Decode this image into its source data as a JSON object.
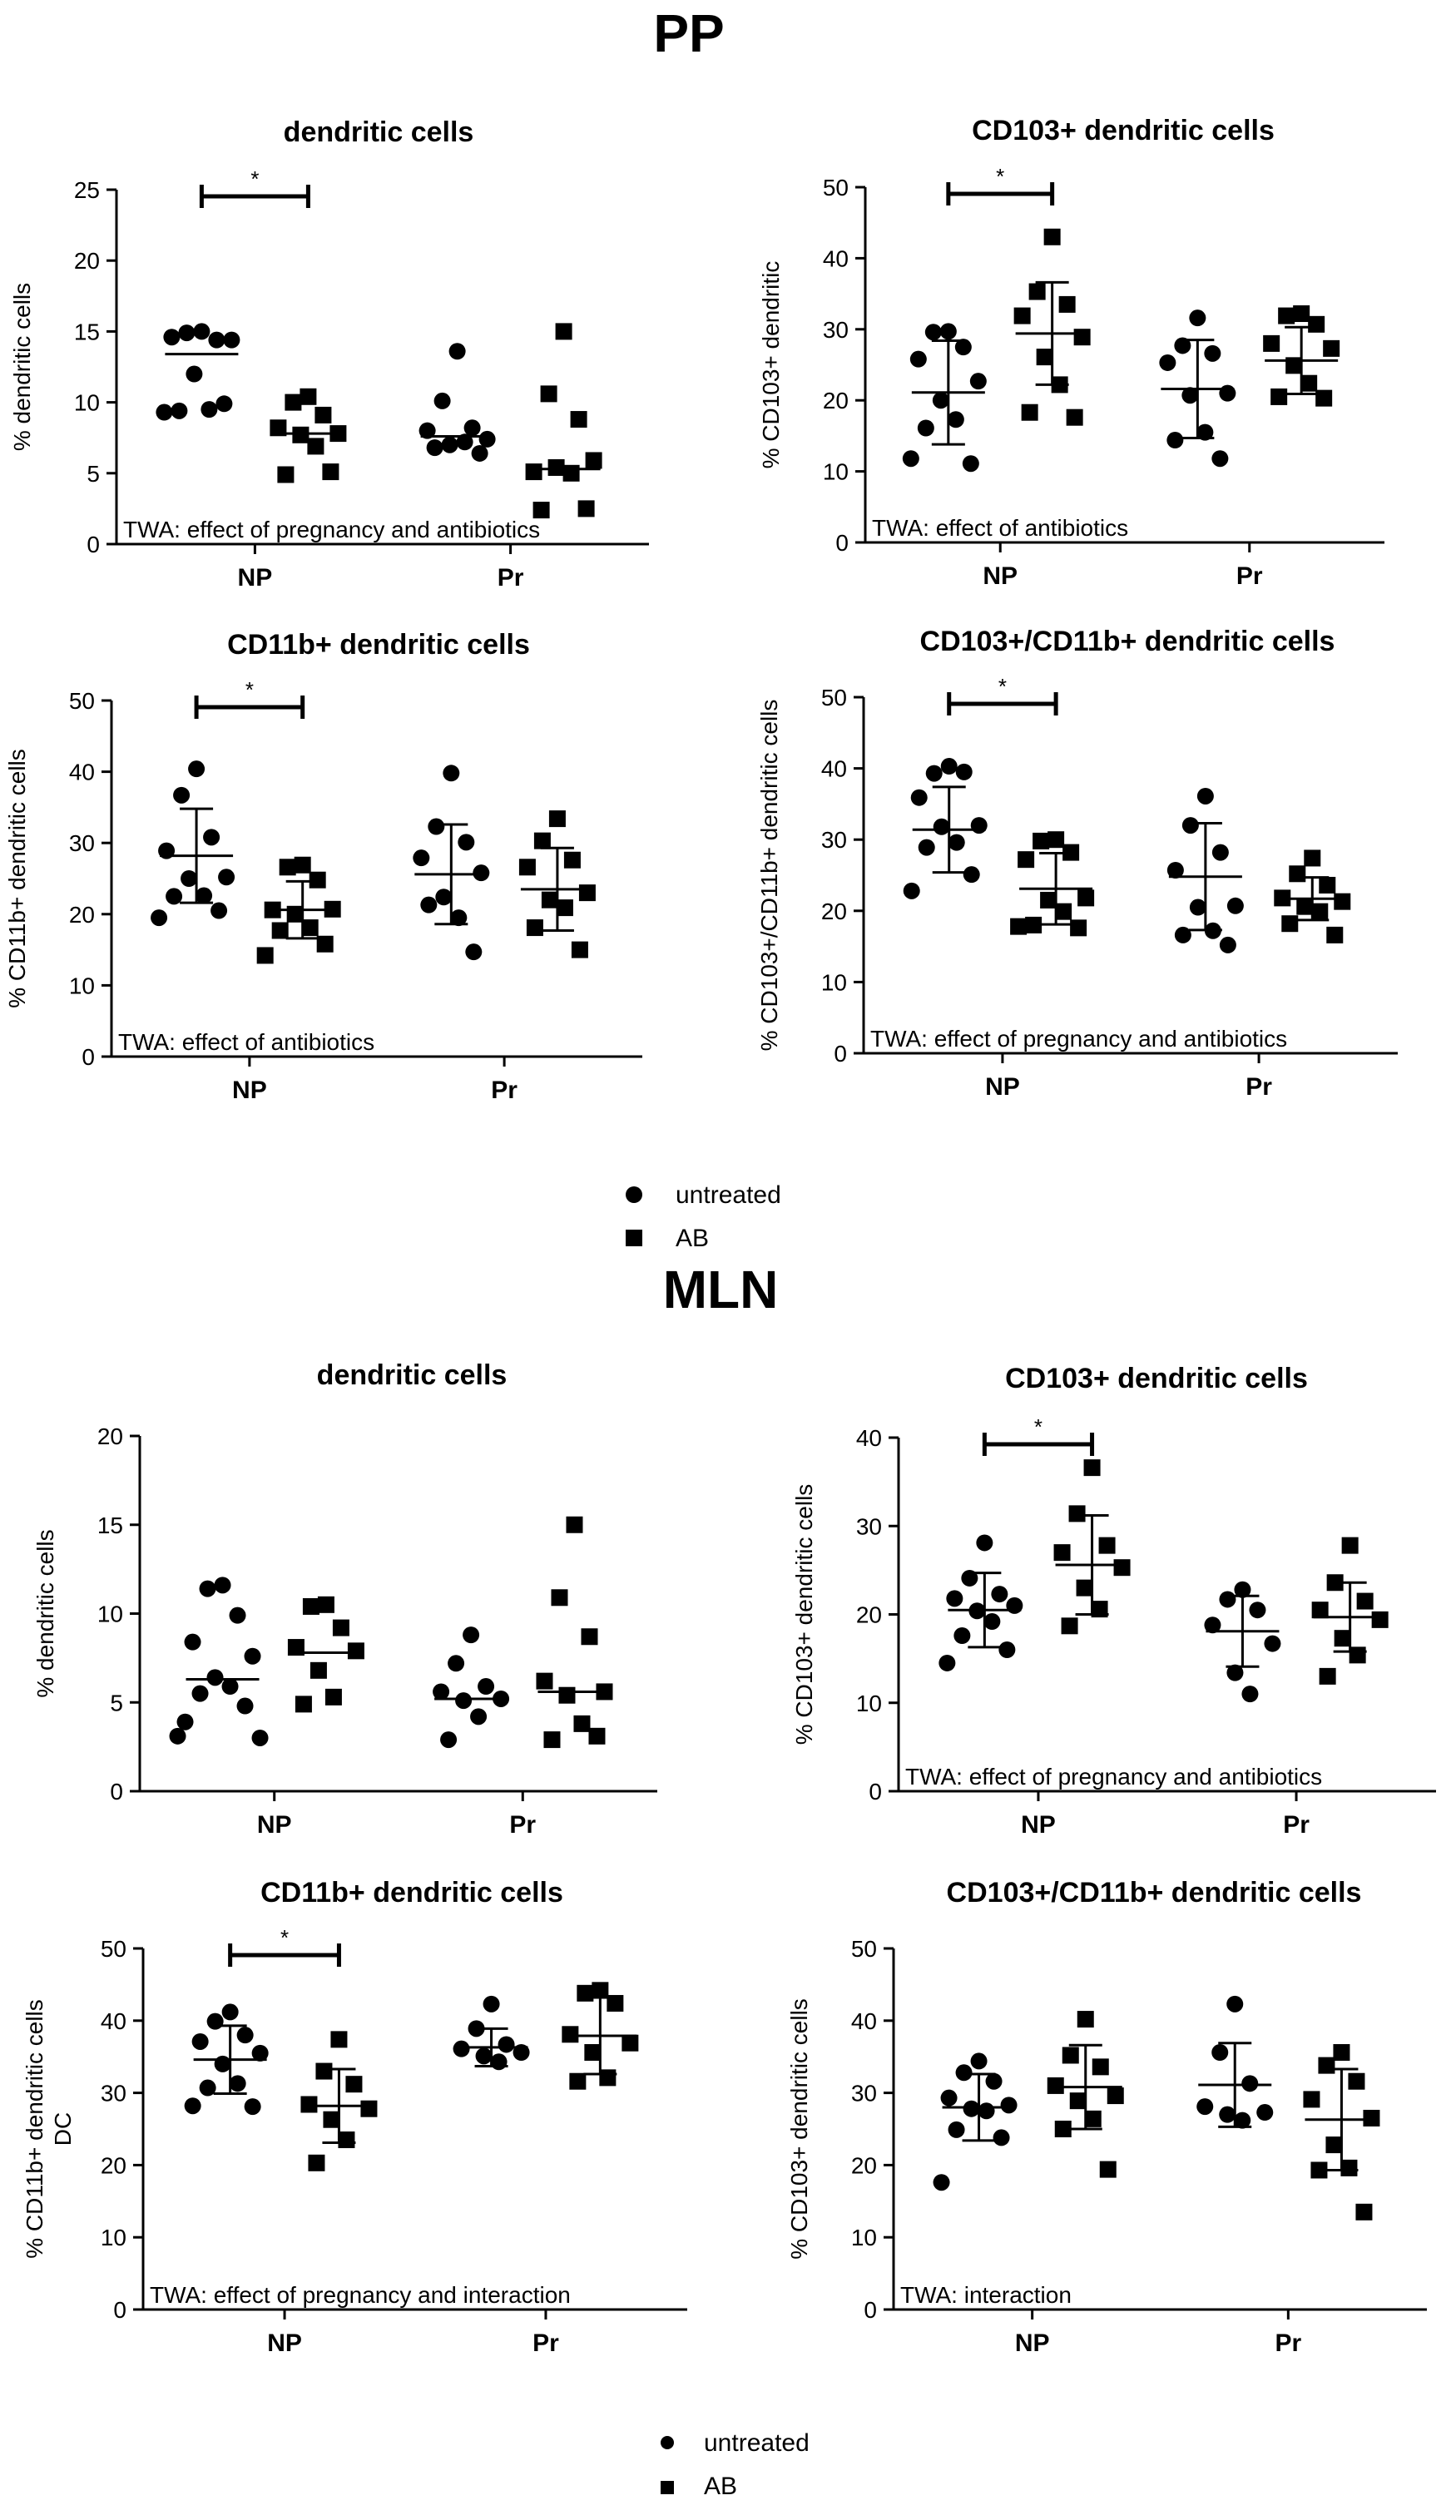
{
  "sections": {
    "pp": {
      "title": "PP"
    },
    "mln": {
      "title": "MLN"
    }
  },
  "legend_top": {
    "untreated": "untreated",
    "ab": "AB"
  },
  "legend_bottom": {
    "untreated": "untreated",
    "ab": "AB"
  },
  "colors": {
    "marker": "#000000",
    "axis": "#000000",
    "background": "#ffffff"
  },
  "chart_data": [
    {
      "id": "pp-dc",
      "type": "scatter",
      "section": "PP",
      "title": "dendritic cells",
      "ylabel": [
        "% dendritic cells"
      ],
      "xlabel": "",
      "categories": [
        "NP",
        "Pr"
      ],
      "ylim": [
        0,
        25
      ],
      "yticks": [
        0,
        5,
        10,
        15,
        20,
        25
      ],
      "annotation": "TWA: effect of pregnancy and antibiotics",
      "significance": {
        "group": "NP",
        "label": "*"
      },
      "series": [
        {
          "name": "untreated",
          "marker": "circle",
          "values": {
            "NP": [
              15.0,
              14.9,
              14.4,
              14.6,
              14.4,
              12.0,
              9.5,
              9.4,
              9.9,
              9.3
            ],
            "Pr": [
              13.6,
              10.1,
              8.2,
              8.0,
              7.4,
              7.0,
              7.2,
              6.8,
              6.4
            ]
          }
        },
        {
          "name": "AB",
          "marker": "square",
          "values": {
            "NP": [
              10.4,
              10.0,
              9.1,
              8.2,
              7.8,
              7.7,
              6.9,
              4.9,
              5.1
            ],
            "Pr": [
              15.0,
              10.6,
              8.8,
              5.1,
              5.9,
              5.4,
              5.0,
              2.4,
              2.5
            ]
          }
        }
      ],
      "mean_sd": {
        "untreated": {
          "NP": [
            13.4,
            0
          ],
          "Pr": [
            7.6,
            0
          ]
        },
        "AB": {
          "NP": [
            7.8,
            0
          ],
          "Pr": [
            5.3,
            0
          ]
        }
      }
    },
    {
      "id": "pp-cd103",
      "type": "scatter",
      "section": "PP",
      "title": "CD103+ dendritic cells",
      "ylabel": [
        "% CD103+ dendritic"
      ],
      "xlabel": "",
      "categories": [
        "NP",
        "Pr"
      ],
      "ylim": [
        0,
        50
      ],
      "yticks": [
        0,
        10,
        20,
        30,
        40,
        50
      ],
      "annotation": "TWA: effect of antibiotics",
      "significance": {
        "group": "NP",
        "label": "*"
      },
      "series": [
        {
          "name": "untreated",
          "marker": "circle",
          "values": {
            "NP": [
              29.7,
              29.6,
              27.5,
              25.8,
              22.7,
              20.0,
              17.3,
              16.1,
              11.1,
              11.8
            ],
            "Pr": [
              31.6,
              27.7,
              26.6,
              25.3,
              21.0,
              20.7,
              15.5,
              14.4,
              11.8
            ]
          }
        },
        {
          "name": "AB",
          "marker": "square",
          "values": {
            "NP": [
              43.0,
              35.3,
              33.5,
              31.9,
              28.9,
              26.1,
              22.2,
              18.3,
              17.6
            ],
            "Pr": [
              32.2,
              31.9,
              30.7,
              28.0,
              27.3,
              24.9,
              22.4,
              20.5,
              20.3
            ]
          }
        }
      ],
      "mean_sd": {
        "untreated": {
          "NP": [
            21.1,
            7.3
          ],
          "Pr": [
            21.6,
            6.9
          ]
        },
        "AB": {
          "NP": [
            29.4,
            7.2
          ],
          "Pr": [
            25.6,
            4.7
          ]
        }
      }
    },
    {
      "id": "pp-cd11b",
      "type": "scatter",
      "section": "PP",
      "title": "CD11b+ dendritic cells",
      "ylabel": [
        "% CD11b+ dendritic cells"
      ],
      "xlabel": "",
      "categories": [
        "NP",
        "Pr"
      ],
      "ylim": [
        0,
        50
      ],
      "yticks": [
        0,
        10,
        20,
        30,
        40,
        50
      ],
      "annotation": "TWA: effect of antibiotics",
      "significance": {
        "group": "NP",
        "label": "*"
      },
      "series": [
        {
          "name": "untreated",
          "marker": "circle",
          "values": {
            "NP": [
              40.4,
              36.7,
              30.8,
              28.9,
              25.2,
              25.0,
              22.6,
              22.5,
              20.5,
              19.5
            ],
            "Pr": [
              39.8,
              32.3,
              30.1,
              27.9,
              25.8,
              22.4,
              19.5,
              21.3,
              14.7
            ]
          }
        },
        {
          "name": "AB",
          "marker": "square",
          "values": {
            "NP": [
              26.9,
              26.6,
              24.8,
              20.6,
              20.7,
              20.0,
              18.1,
              17.7,
              15.8,
              14.2
            ],
            "Pr": [
              33.4,
              30.3,
              27.6,
              26.6,
              23.0,
              22.0,
              20.9,
              18.1,
              15.0
            ]
          }
        }
      ],
      "mean_sd": {
        "untreated": {
          "NP": [
            28.2,
            6.6
          ],
          "Pr": [
            25.6,
            7.0
          ]
        },
        "AB": {
          "NP": [
            20.6,
            4.0
          ],
          "Pr": [
            23.5,
            5.8
          ]
        }
      }
    },
    {
      "id": "pp-cd103-cd11b",
      "type": "scatter",
      "section": "PP",
      "title": "CD103+/CD11b+ dendritic cells",
      "ylabel": [
        "% CD103+/CD11b+ dendritic cells"
      ],
      "xlabel": "",
      "categories": [
        "NP",
        "Pr"
      ],
      "ylim": [
        0,
        50
      ],
      "yticks": [
        0,
        10,
        20,
        30,
        40,
        50
      ],
      "annotation": "TWA: effect of pregnancy and antibiotics",
      "significance": {
        "group": "NP",
        "label": "*"
      },
      "series": [
        {
          "name": "untreated",
          "marker": "circle",
          "values": {
            "NP": [
              40.3,
              39.3,
              39.5,
              35.9,
              32.0,
              31.8,
              29.6,
              28.9,
              25.1,
              22.8
            ],
            "Pr": [
              36.1,
              32.0,
              28.2,
              25.7,
              20.7,
              20.5,
              17.2,
              16.6,
              15.2
            ]
          }
        },
        {
          "name": "AB",
          "marker": "square",
          "values": {
            "NP": [
              30.0,
              29.8,
              28.2,
              27.2,
              21.8,
              21.5,
              19.9,
              18.0,
              17.6,
              17.8
            ],
            "Pr": [
              27.4,
              25.2,
              23.6,
              21.8,
              21.3,
              20.6,
              19.9,
              18.2,
              16.6
            ]
          }
        }
      ],
      "mean_sd": {
        "untreated": {
          "NP": [
            31.4,
            6.0
          ],
          "Pr": [
            24.8,
            7.5
          ]
        },
        "AB": {
          "NP": [
            23.1,
            5.0
          ],
          "Pr": [
            21.7,
            3.0
          ]
        }
      }
    },
    {
      "id": "mln-dc",
      "type": "scatter",
      "section": "MLN",
      "title": "dendritic cells",
      "ylabel": [
        "% dendritic cells"
      ],
      "xlabel": "",
      "categories": [
        "NP",
        "Pr"
      ],
      "ylim": [
        0,
        20
      ],
      "yticks": [
        0,
        5,
        10,
        15,
        20
      ],
      "annotation": "",
      "significance": null,
      "series": [
        {
          "name": "untreated",
          "marker": "circle",
          "values": {
            "NP": [
              11.6,
              11.4,
              9.9,
              8.4,
              7.6,
              6.4,
              5.9,
              5.5,
              4.8,
              3.9,
              3.0,
              3.1
            ],
            "Pr": [
              8.8,
              7.2,
              5.9,
              5.6,
              5.2,
              5.1,
              4.2,
              2.9
            ]
          }
        },
        {
          "name": "AB",
          "marker": "square",
          "values": {
            "NP": [
              10.5,
              10.4,
              9.2,
              8.1,
              7.9,
              6.8,
              5.3,
              4.9
            ],
            "Pr": [
              15.0,
              10.9,
              8.7,
              6.2,
              5.6,
              5.4,
              3.8,
              2.9,
              3.1
            ]
          }
        }
      ],
      "mean_sd": {
        "untreated": {
          "NP": [
            6.3,
            0
          ],
          "Pr": [
            5.2,
            0
          ]
        },
        "AB": {
          "NP": [
            7.8,
            0
          ],
          "Pr": [
            5.6,
            0
          ]
        }
      }
    },
    {
      "id": "mln-cd103",
      "type": "scatter",
      "section": "MLN",
      "title": "CD103+ dendritic cells",
      "ylabel": [
        "% CD103+ dendritic cells"
      ],
      "xlabel": "",
      "categories": [
        "NP",
        "Pr"
      ],
      "ylim": [
        0,
        40
      ],
      "yticks": [
        0,
        10,
        20,
        30,
        40
      ],
      "annotation": "TWA: effect of pregnancy and antibiotics",
      "significance": {
        "group": "NP",
        "label": "*"
      },
      "series": [
        {
          "name": "untreated",
          "marker": "circle",
          "values": {
            "NP": [
              28.1,
              24.1,
              22.3,
              21.8,
              21.0,
              20.4,
              19.2,
              17.6,
              16.0,
              14.5
            ],
            "Pr": [
              22.8,
              21.7,
              20.5,
              18.8,
              16.7,
              13.4,
              11.0
            ]
          }
        },
        {
          "name": "AB",
          "marker": "square",
          "values": {
            "NP": [
              36.6,
              31.4,
              27.8,
              27.0,
              25.3,
              23.0,
              20.6,
              18.7
            ],
            "Pr": [
              27.8,
              23.6,
              21.5,
              20.5,
              19.4,
              17.3,
              15.4,
              13.0
            ]
          }
        }
      ],
      "mean_sd": {
        "untreated": {
          "NP": [
            20.5,
            4.2
          ],
          "Pr": [
            18.1,
            4.0
          ]
        },
        "AB": {
          "NP": [
            25.6,
            5.6
          ],
          "Pr": [
            19.7,
            3.9
          ]
        }
      }
    },
    {
      "id": "mln-cd11b",
      "type": "scatter",
      "section": "MLN",
      "title": "CD11b+ dendritic cells",
      "ylabel": [
        "% CD11b+ dendritic cells",
        "DC"
      ],
      "xlabel": "",
      "categories": [
        "NP",
        "Pr"
      ],
      "ylim": [
        0,
        50
      ],
      "yticks": [
        0,
        10,
        20,
        30,
        40,
        50
      ],
      "annotation": "TWA: effect of pregnancy and interaction",
      "significance": {
        "group": "NP",
        "label": "*"
      },
      "series": [
        {
          "name": "untreated",
          "marker": "circle",
          "values": {
            "NP": [
              41.2,
              39.9,
              38.0,
              37.1,
              35.5,
              34.0,
              31.3,
              30.7,
              28.1,
              28.2
            ],
            "Pr": [
              42.3,
              38.9,
              36.7,
              36.1,
              35.6,
              35.1,
              34.3
            ]
          }
        },
        {
          "name": "AB",
          "marker": "square",
          "values": {
            "NP": [
              37.4,
              33.0,
              31.2,
              28.4,
              27.8,
              26.3,
              23.5,
              20.3
            ],
            "Pr": [
              44.2,
              43.8,
              42.4,
              38.1,
              36.9,
              35.6,
              32.1,
              31.6
            ]
          }
        }
      ],
      "mean_sd": {
        "untreated": {
          "NP": [
            34.6,
            4.7
          ],
          "Pr": [
            36.3,
            2.6
          ]
        },
        "AB": {
          "NP": [
            28.2,
            5.1
          ],
          "Pr": [
            37.9,
            5.3
          ]
        }
      }
    },
    {
      "id": "mln-cd103-cd11b",
      "type": "scatter",
      "section": "MLN",
      "title": "CD103+/CD11b+ dendritic cells",
      "ylabel": [
        "% CD103+ dendritic cells"
      ],
      "xlabel": "",
      "categories": [
        "NP",
        "Pr"
      ],
      "ylim": [
        0,
        50
      ],
      "yticks": [
        0,
        10,
        20,
        30,
        40,
        50
      ],
      "annotation": "TWA: interaction",
      "significance": null,
      "series": [
        {
          "name": "untreated",
          "marker": "circle",
          "values": {
            "NP": [
              34.4,
              32.8,
              31.6,
              29.3,
              28.3,
              27.8,
              27.5,
              24.9,
              23.8,
              17.6
            ],
            "Pr": [
              42.3,
              35.6,
              31.3,
              28.1,
              27.3,
              27.0,
              26.2
            ]
          }
        },
        {
          "name": "AB",
          "marker": "square",
          "values": {
            "NP": [
              40.2,
              35.2,
              33.6,
              31.0,
              29.6,
              28.9,
              26.4,
              25.0,
              19.4
            ],
            "Pr": [
              35.6,
              33.8,
              31.6,
              29.1,
              26.5,
              22.8,
              19.6,
              19.3,
              13.5
            ]
          }
        }
      ],
      "mean_sd": {
        "untreated": {
          "NP": [
            28.0,
            4.6
          ],
          "Pr": [
            31.1,
            5.8
          ]
        },
        "AB": {
          "NP": [
            30.8,
            5.8
          ],
          "Pr": [
            26.3,
            7.0
          ]
        }
      }
    }
  ]
}
